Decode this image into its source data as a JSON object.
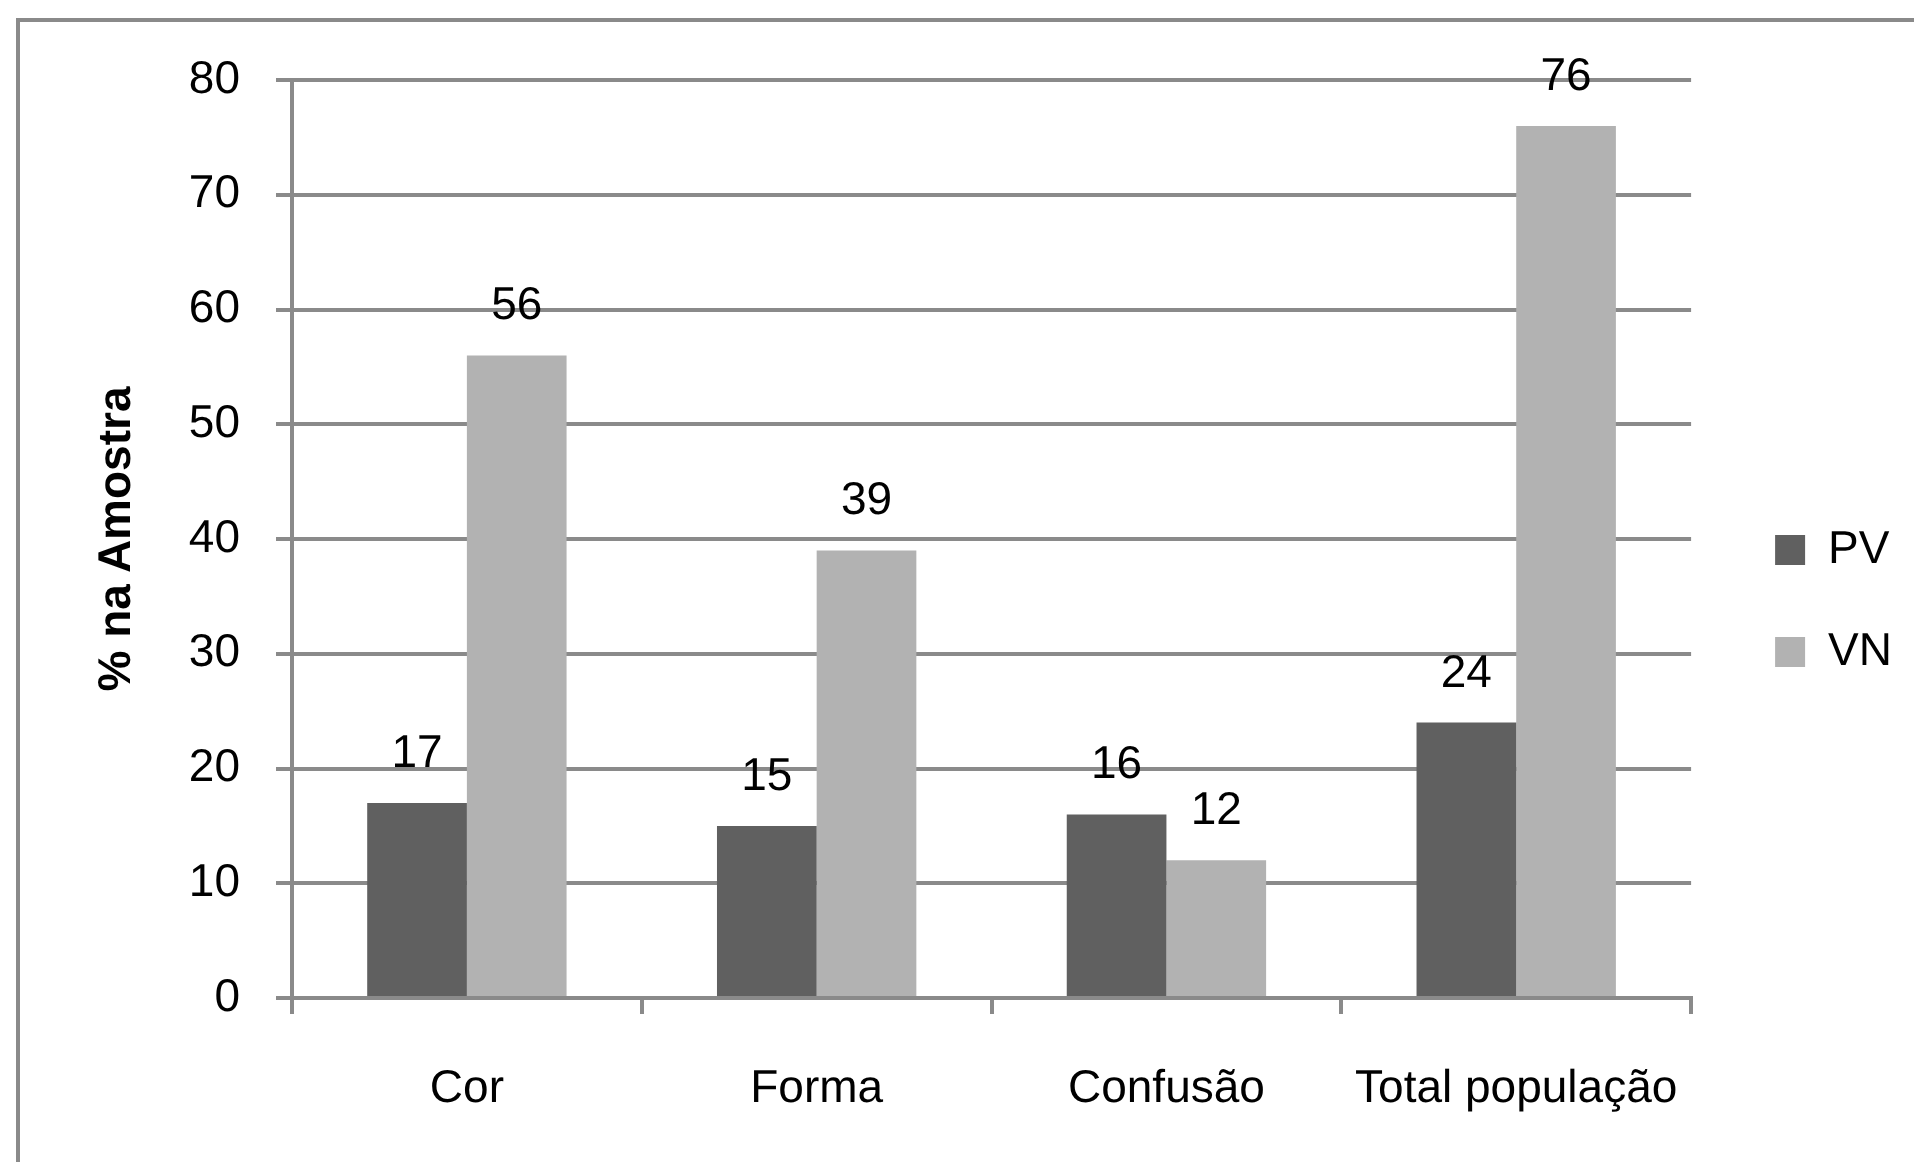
{
  "chart_data": {
    "type": "bar",
    "ylabel": "% na Amostra",
    "categories": [
      "Cor",
      "Forma",
      "Confusão",
      "Total população"
    ],
    "series": [
      {
        "name": "PV",
        "color": "#606060",
        "values": [
          17,
          15,
          16,
          24
        ]
      },
      {
        "name": "VN",
        "color": "#b2b2b2",
        "values": [
          56,
          39,
          12,
          76
        ]
      }
    ],
    "ylim": [
      0,
      80
    ],
    "yticks": [
      0,
      10,
      20,
      30,
      40,
      50,
      60,
      70,
      80
    ],
    "grid": "y",
    "legend": "right",
    "data_labels": true
  }
}
